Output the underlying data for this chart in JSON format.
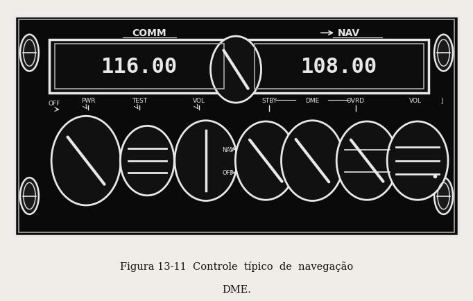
{
  "bg_color": "#f0ede8",
  "panel_bg": "#0a0a0a",
  "panel_edge": "#cccccc",
  "white": "#e8e8e8",
  "gray": "#aaaaaa",
  "dark_gray": "#333333",
  "comm_label": "COMM",
  "nav_label": "NAV",
  "comm_text": "116.00",
  "nav_text": "108.00",
  "caption_line1": "Figura 13-11  Controle  típico  de  navegação",
  "caption_line2": "DME.",
  "figw": 6.82,
  "figh": 4.35,
  "dpi": 100
}
